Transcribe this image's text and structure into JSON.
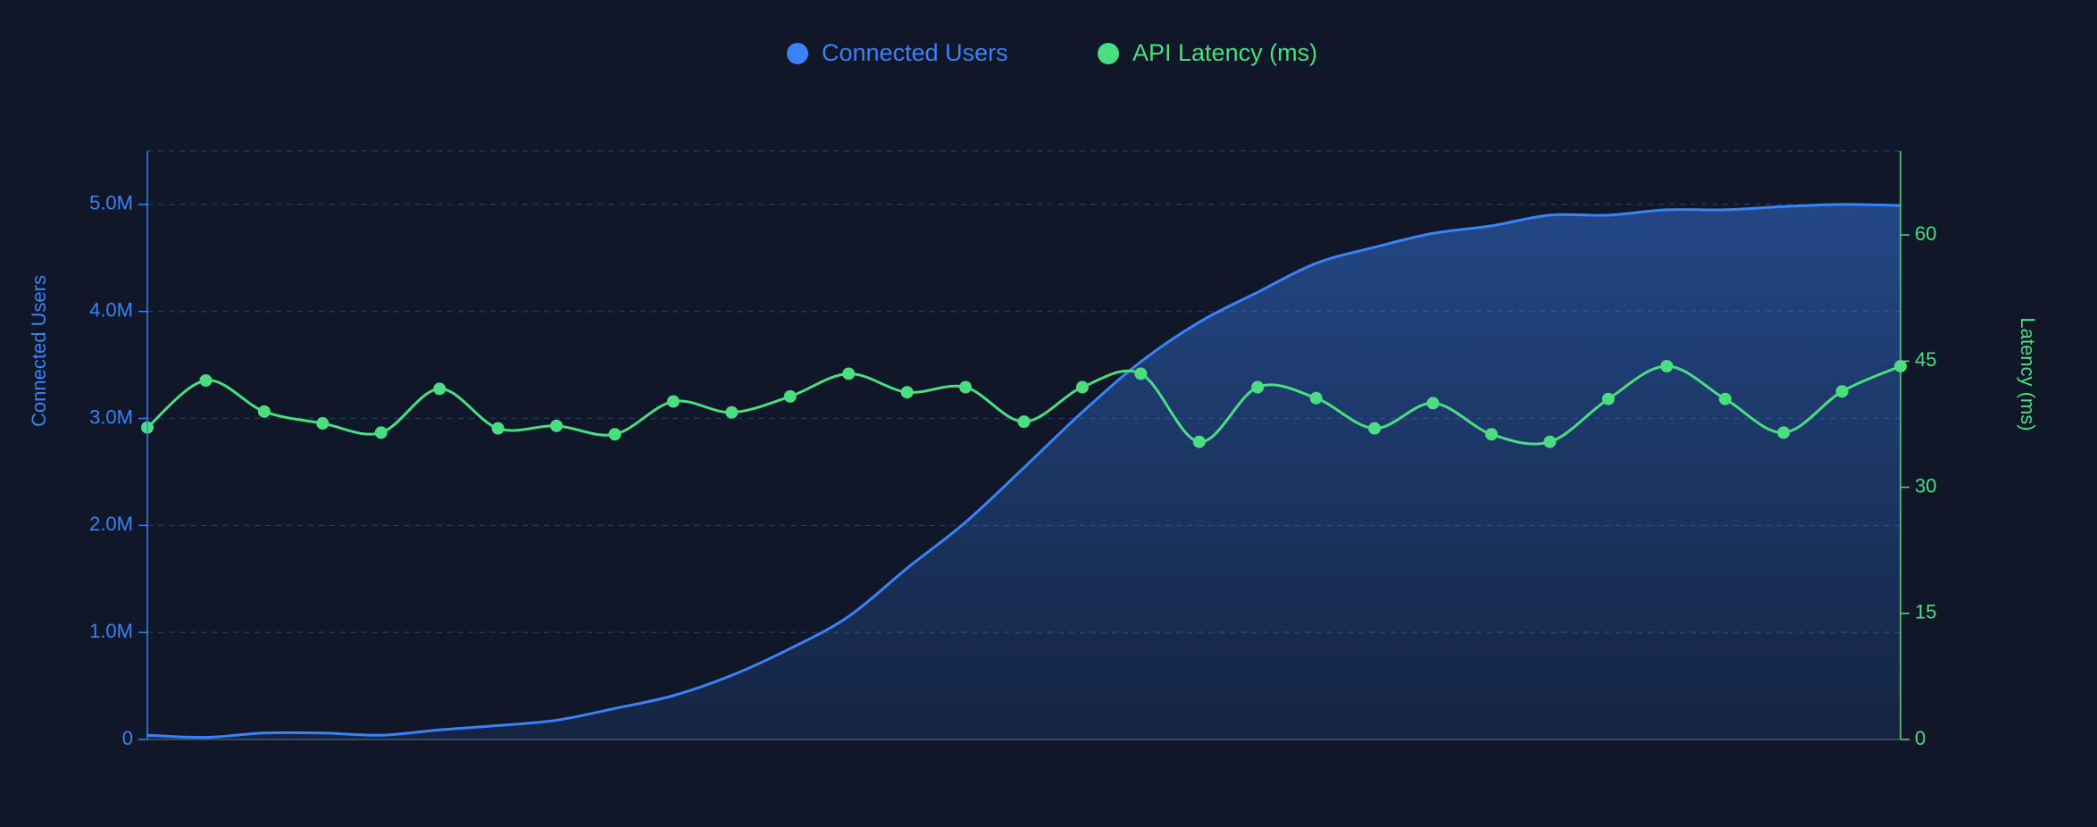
{
  "chart_data": {
    "type": "line",
    "categories": [
      null,
      null,
      null,
      null,
      null,
      null,
      null,
      null,
      null,
      null,
      null,
      null,
      null,
      null,
      null,
      null,
      null,
      null,
      null,
      null,
      null,
      null,
      null,
      null,
      null,
      null,
      null,
      null,
      null,
      null,
      null
    ],
    "series": [
      {
        "name": "Connected Users",
        "color": "#3b82f6",
        "area": true,
        "markers": false,
        "values": [
          40000,
          20000,
          60000,
          60000,
          40000,
          90000,
          130000,
          180000,
          290000,
          410000,
          600000,
          850000,
          1150000,
          1600000,
          2030000,
          2540000,
          3060000,
          3530000,
          3900000,
          4180000,
          4450000,
          4600000,
          4730000,
          4800000,
          4900000,
          4900000,
          4950000,
          4950000,
          4980000,
          5000000,
          4990000
        ]
      },
      {
        "name": "API Latency (ms)",
        "color": "#4ade80",
        "axis": "y2",
        "area": false,
        "markers": true,
        "values": [
          37.1,
          42.7,
          39.0,
          37.6,
          36.5,
          41.7,
          37.0,
          37.3,
          36.3,
          40.2,
          38.9,
          40.8,
          43.5,
          41.3,
          41.9,
          37.8,
          41.9,
          43.5,
          35.4,
          41.9,
          40.6,
          37.0,
          40.0,
          36.3,
          35.4,
          40.5,
          44.4,
          40.5,
          36.5,
          41.4,
          44.4
        ]
      }
    ],
    "y_label": "Connected Users",
    "y2_label": "Latency (ms)",
    "ylim": [
      0,
      5500000
    ],
    "yticks": [
      0,
      {
        "value": 1000000,
        "label": "1.0M"
      },
      {
        "value": 2000000,
        "label": "2.0M"
      },
      {
        "value": 3000000,
        "label": "3.0M"
      },
      {
        "value": 4000000,
        "label": "4.0M"
      },
      {
        "value": 5000000,
        "label": "5.0M"
      }
    ],
    "y2lim": [
      0,
      70
    ],
    "y2ticks": [
      0,
      15,
      30,
      45,
      60
    ],
    "grid": true,
    "legend": "top"
  }
}
